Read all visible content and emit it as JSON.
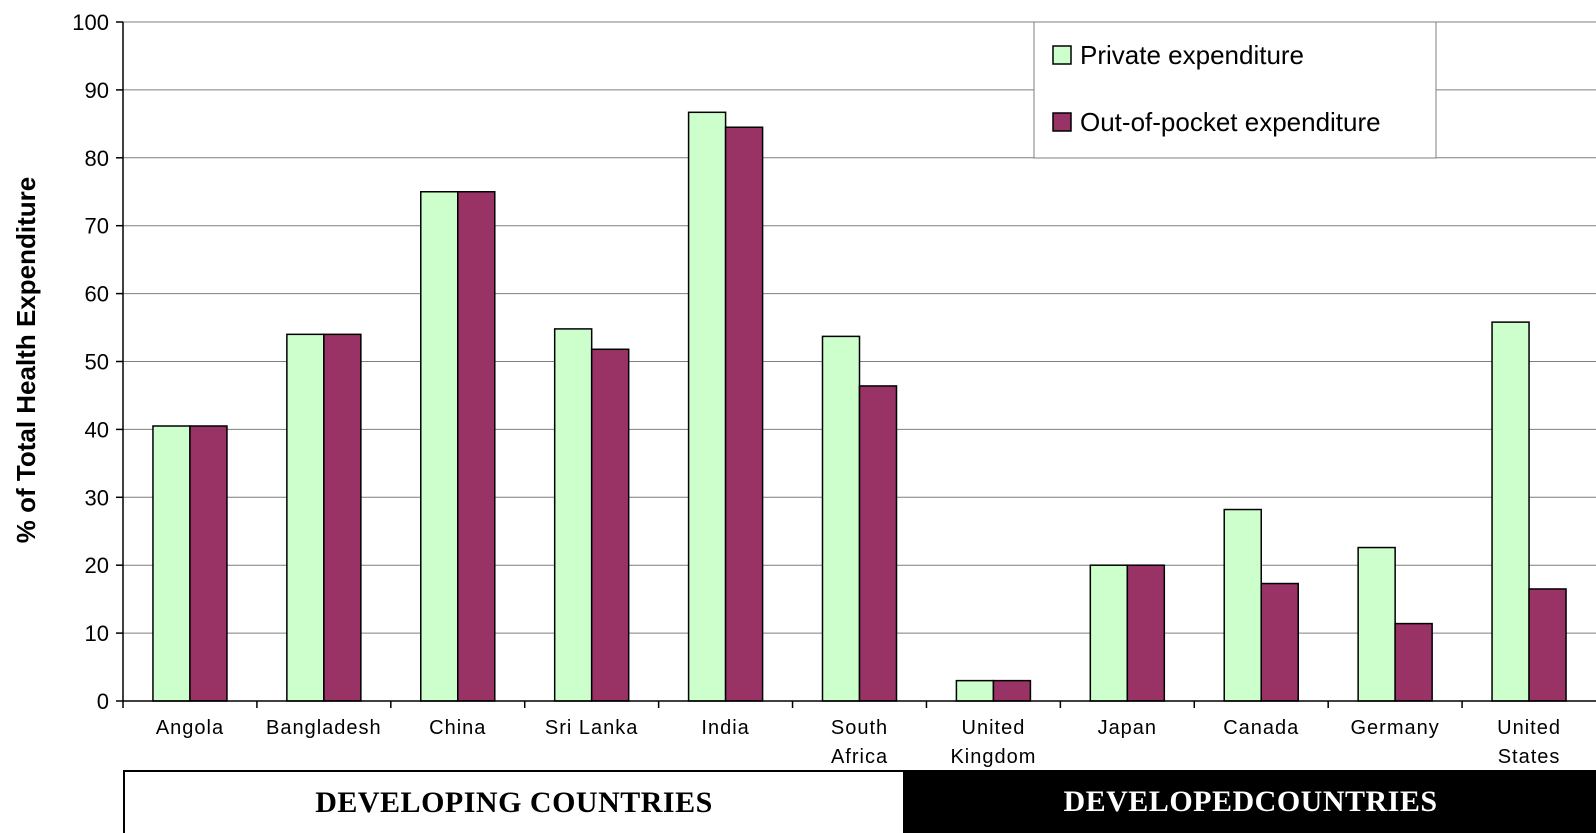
{
  "chart_data": {
    "type": "bar",
    "title": "",
    "xlabel": "",
    "ylabel": "% of Total Health Expenditure",
    "ylim": [
      0,
      100
    ],
    "yticks": [
      0,
      10,
      20,
      30,
      40,
      50,
      60,
      70,
      80,
      90,
      100
    ],
    "grid": true,
    "legend_position": "top-right",
    "categories": [
      [
        "Angola"
      ],
      [
        "Bangladesh"
      ],
      [
        "China"
      ],
      [
        "Sri Lanka"
      ],
      [
        "India"
      ],
      [
        "South",
        "Africa"
      ],
      [
        "United",
        "Kingdom"
      ],
      [
        "Japan"
      ],
      [
        "Canada"
      ],
      [
        "Germany"
      ],
      [
        "United",
        "States"
      ]
    ],
    "series": [
      {
        "name": "Private expenditure",
        "color": "#ccffcc",
        "values": [
          40.5,
          54,
          75,
          54.8,
          86.7,
          53.7,
          3,
          20,
          28.2,
          22.6,
          55.8
        ]
      },
      {
        "name": "Out-of-pocket expenditure",
        "color": "#993366",
        "values": [
          40.5,
          54,
          75,
          51.8,
          84.5,
          46.4,
          3,
          20,
          17.3,
          11.4,
          16.5
        ]
      }
    ]
  },
  "groups": {
    "developing": "DEVELOPING COUNTRIES",
    "developed": "DEVELOPEDCOUNTRIES"
  }
}
